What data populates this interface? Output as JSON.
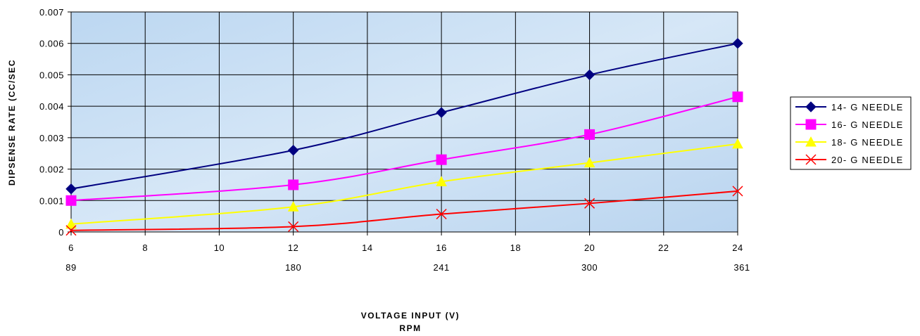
{
  "chart_data": {
    "type": "line",
    "title": "",
    "xlabel": "VOLTAGE INPUT (V)",
    "xlabel2": "RPM",
    "ylabel": "DIPSENSE RATE (CC/SEC",
    "xlim": [
      6,
      24
    ],
    "ylim": [
      0,
      0.007
    ],
    "x_ticks": [
      "6",
      "8",
      "10",
      "12",
      "14",
      "16",
      "18",
      "20",
      "22",
      "24"
    ],
    "y_ticks": [
      "0",
      "0.001",
      "0.002",
      "0.003",
      "0.004",
      "0.005",
      "0.006",
      "0.007"
    ],
    "secondary_ticks": [
      {
        "x": 6,
        "label": "89"
      },
      {
        "x": 12,
        "label": "180"
      },
      {
        "x": 16,
        "label": "241"
      },
      {
        "x": 20,
        "label": "300"
      },
      {
        "x": 24,
        "label": "361"
      }
    ],
    "grid": true,
    "legend_position": "right",
    "series": [
      {
        "name": "14- G NEEDLE",
        "color": "#000080",
        "marker": "diamond",
        "x": [
          6,
          12,
          16,
          20,
          24
        ],
        "values": [
          0.00137,
          0.0026,
          0.0038,
          0.005,
          0.006
        ]
      },
      {
        "name": "16- G NEEDLE",
        "color": "#ff00ff",
        "marker": "square",
        "x": [
          6,
          12,
          16,
          20,
          24
        ],
        "values": [
          0.001,
          0.0015,
          0.0023,
          0.0031,
          0.0043
        ]
      },
      {
        "name": "18- G NEEDLE",
        "color": "#ffff00",
        "marker": "triangle",
        "x": [
          6,
          12,
          16,
          20,
          24
        ],
        "values": [
          0.00025,
          0.0008,
          0.0016,
          0.0022,
          0.0028
        ]
      },
      {
        "name": "20- G NEEDLE",
        "color": "#ff0000",
        "marker": "x",
        "x": [
          6,
          12,
          16,
          20,
          24
        ],
        "values": [
          5e-05,
          0.00017,
          0.00057,
          0.00091,
          0.0013
        ]
      }
    ]
  }
}
